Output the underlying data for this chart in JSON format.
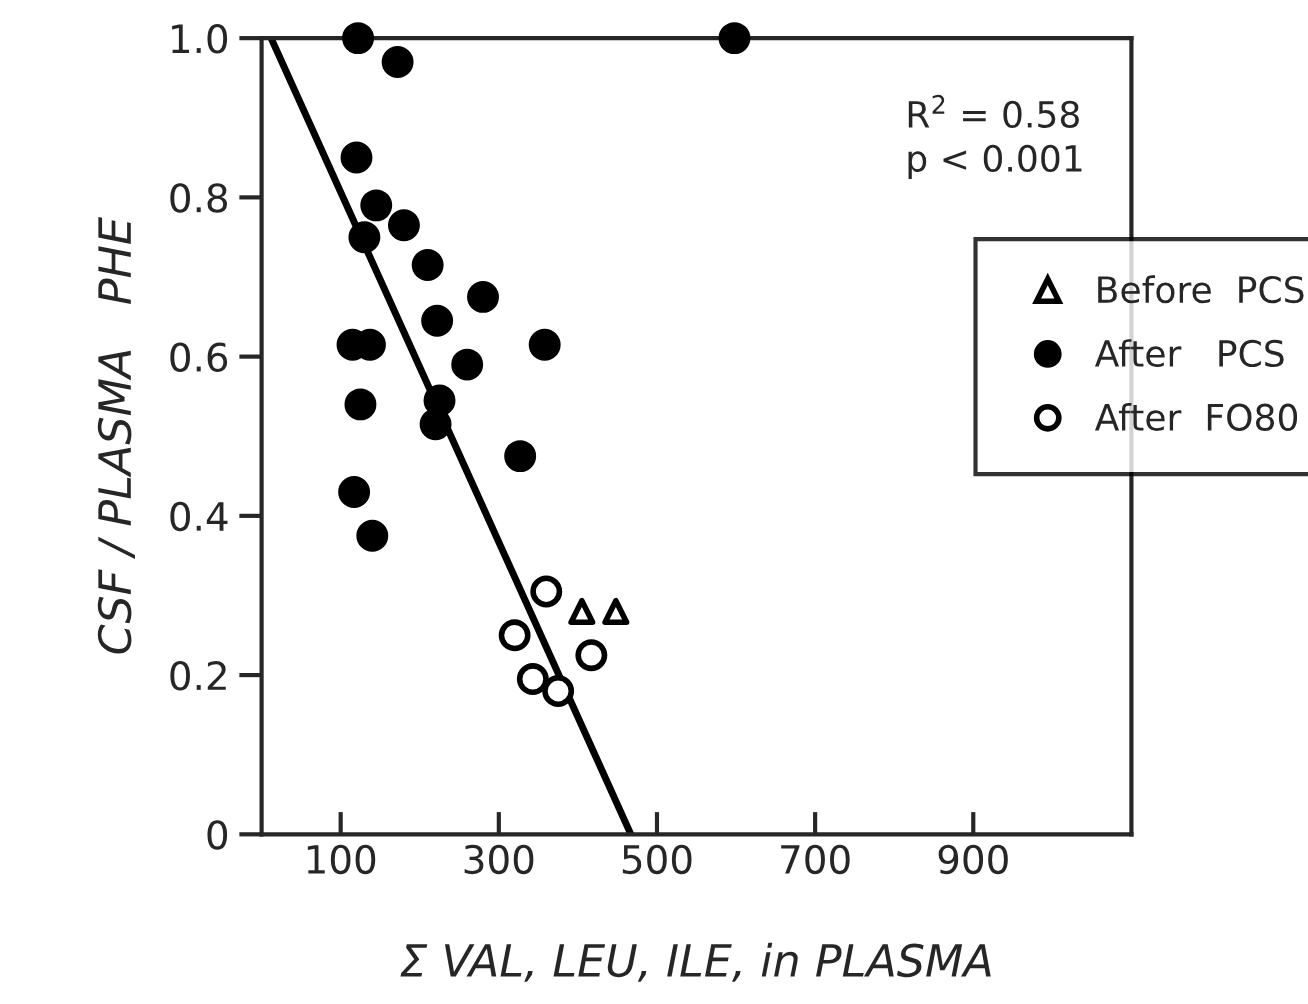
{
  "chart_data": {
    "type": "scatter",
    "xlabel": "Σ VAL, LEU, ILE, in PLASMA",
    "ylabel": "CSF / PLASMA   PHE",
    "xlim": [
      0,
      1100
    ],
    "xticks": [
      100,
      300,
      500,
      700,
      900
    ],
    "ylim": [
      0,
      1.0
    ],
    "yticks": [
      {
        "value": 0,
        "label": "0"
      },
      0.2,
      0.4,
      0.6,
      0.8,
      {
        "value": 1.0,
        "label": "1.0"
      }
    ],
    "grid": false,
    "legend": "right",
    "annotations": [
      "R$^{2}$ = 0.58",
      "p < 0.001"
    ],
    "series": [
      {
        "name": "Before  PCS",
        "color": "#ffffff",
        "marker": "triangle",
        "x": [
          405,
          448
        ],
        "values": [
          0.28,
          0.28
        ]
      },
      {
        "name": "After   PCS",
        "color": "#000000",
        "marker": "circle",
        "x": [
          122,
          598,
          172,
          120,
          145,
          130,
          180,
          210,
          280,
          222,
          115,
          137,
          358,
          260,
          125,
          225,
          220,
          327,
          117,
          140
        ],
        "values": [
          1.0,
          1.0,
          0.97,
          0.85,
          0.79,
          0.75,
          0.765,
          0.715,
          0.675,
          0.645,
          0.615,
          0.615,
          0.615,
          0.59,
          0.54,
          0.545,
          0.515,
          0.475,
          0.43,
          0.375
        ]
      },
      {
        "name": "After  FO80",
        "color": "#ffffff",
        "marker": "circle",
        "x": [
          360,
          320,
          417,
          343,
          375
        ],
        "values": [
          0.305,
          0.25,
          0.225,
          0.195,
          0.18
        ]
      },
      {
        "type": "line",
        "color": "#000000",
        "line_style": "solid",
        "x": [
          12,
          467
        ],
        "values": [
          1.0,
          0.0
        ]
      }
    ]
  }
}
